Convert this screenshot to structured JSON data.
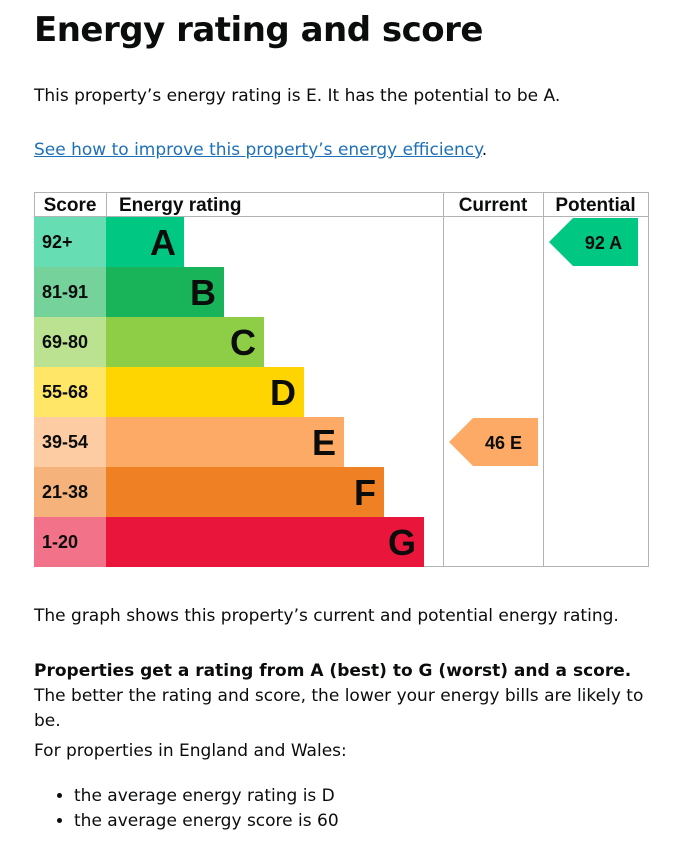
{
  "heading": "Energy rating and score",
  "summary": "This property’s energy rating is E. It has the potential to be A.",
  "improve_link": "See how to improve this property’s energy efficiency",
  "improve_link_suffix": ".",
  "graph_note": "The graph shows this property’s current and potential energy rating.",
  "rating_explain_bold": "Properties get a rating from A (best) to G (worst) and a score.",
  "rating_explain_rest": " The better the rating and score, the lower your energy bills are likely to be.",
  "region_intro": "For properties in England and Wales:",
  "averages": [
    "the average energy rating is D",
    "the average energy score is 60"
  ],
  "chart_data": {
    "type": "bar",
    "headers": {
      "score": "Score",
      "rating": "Energy rating",
      "current": "Current",
      "potential": "Potential"
    },
    "bands": [
      {
        "letter": "A",
        "range": "92+",
        "color": "#00c781",
        "score_bg": "#66ddb3"
      },
      {
        "letter": "B",
        "range": "81-91",
        "color": "#19b459",
        "score_bg": "#75d29b"
      },
      {
        "letter": "C",
        "range": "69-80",
        "color": "#8dce46",
        "score_bg": "#bbe290"
      },
      {
        "letter": "D",
        "range": "55-68",
        "color": "#ffd500",
        "score_bg": "#ffe666"
      },
      {
        "letter": "E",
        "range": "39-54",
        "color": "#fcaa65",
        "score_bg": "#fdcca3"
      },
      {
        "letter": "F",
        "range": "21-38",
        "color": "#ef8023",
        "score_bg": "#f5b37b"
      },
      {
        "letter": "G",
        "range": "1-20",
        "color": "#e9153b",
        "score_bg": "#f27389"
      }
    ],
    "current": {
      "score": 46,
      "letter": "E",
      "label": "46  E",
      "color": "#fcaa65"
    },
    "potential": {
      "score": 92,
      "letter": "A",
      "label": "92  A",
      "color": "#00c781"
    }
  }
}
